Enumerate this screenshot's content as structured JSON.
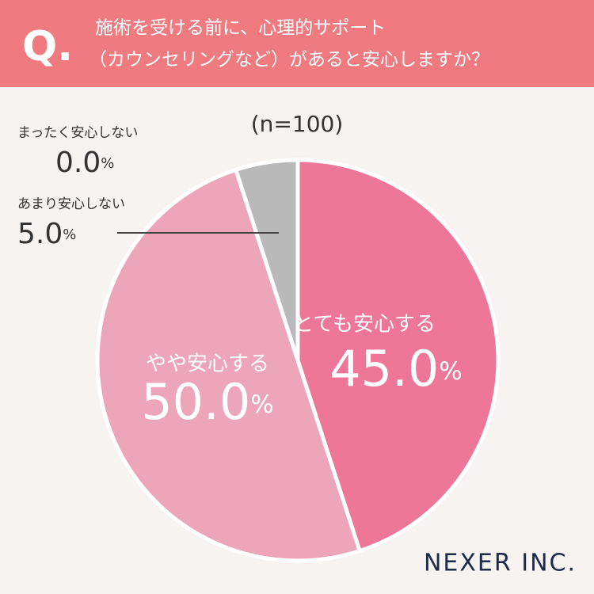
{
  "header": {
    "mark": "Q.",
    "title": [
      "施術を受ける前に、心理的サポート",
      "（カウンセリングなど）があると安心しますか？"
    ]
  },
  "chart_data": {
    "type": "pie",
    "subtitle": "(n=100)",
    "categories": [
      "とても安心する",
      "やや安心する",
      "あまり安心しない",
      "まったく安心しない"
    ],
    "values": [
      45.0,
      50.0,
      5.0,
      0.0
    ],
    "value_labels": [
      "45.0%",
      "50.0%",
      "5.0%",
      "0.0%"
    ],
    "colors": [
      "#ee7799",
      "#eda5ba",
      "#b9b9b9",
      "#9a9a9a"
    ]
  },
  "brand": "NEXER INC."
}
